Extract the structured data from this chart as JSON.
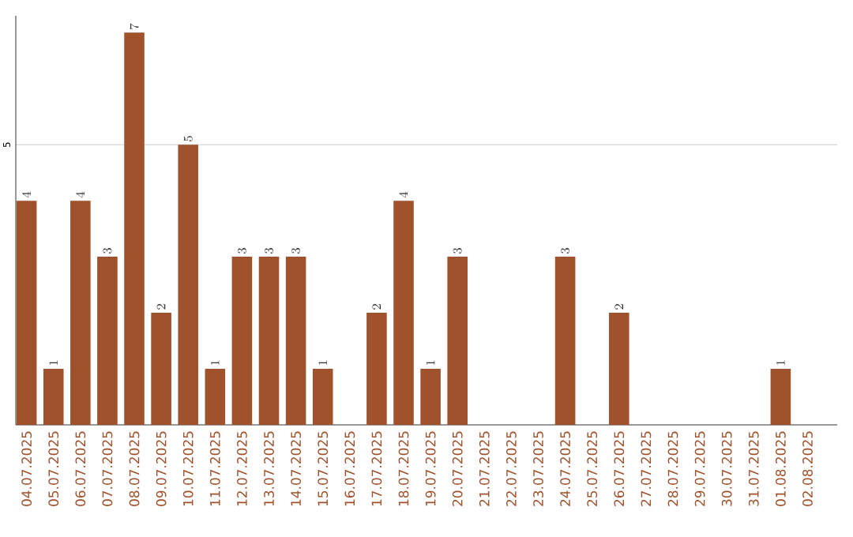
{
  "chart_data": {
    "type": "bar",
    "categories": [
      "04.07.2025",
      "05.07.2025",
      "06.07.2025",
      "07.07.2025",
      "08.07.2025",
      "09.07.2025",
      "10.07.2025",
      "11.07.2025",
      "12.07.2025",
      "13.07.2025",
      "14.07.2025",
      "15.07.2025",
      "16.07.2025",
      "17.07.2025",
      "18.07.2025",
      "19.07.2025",
      "20.07.2025",
      "21.07.2025",
      "22.07.2025",
      "23.07.2025",
      "24.07.2025",
      "25.07.2025",
      "26.07.2025",
      "27.07.2025",
      "28.07.2025",
      "29.07.2025",
      "30.07.2025",
      "31.07.2025",
      "01.08.2025",
      "02.08.2025"
    ],
    "values": [
      4,
      1,
      4,
      3,
      7,
      2,
      5,
      1,
      3,
      3,
      3,
      1,
      null,
      2,
      4,
      1,
      3,
      null,
      null,
      null,
      3,
      null,
      2,
      null,
      null,
      null,
      null,
      null,
      1,
      null
    ],
    "color": "#a0522d",
    "ylim": [
      0,
      7.3
    ],
    "yticks": [
      5
    ],
    "grid": "y",
    "data_labels": true
  }
}
